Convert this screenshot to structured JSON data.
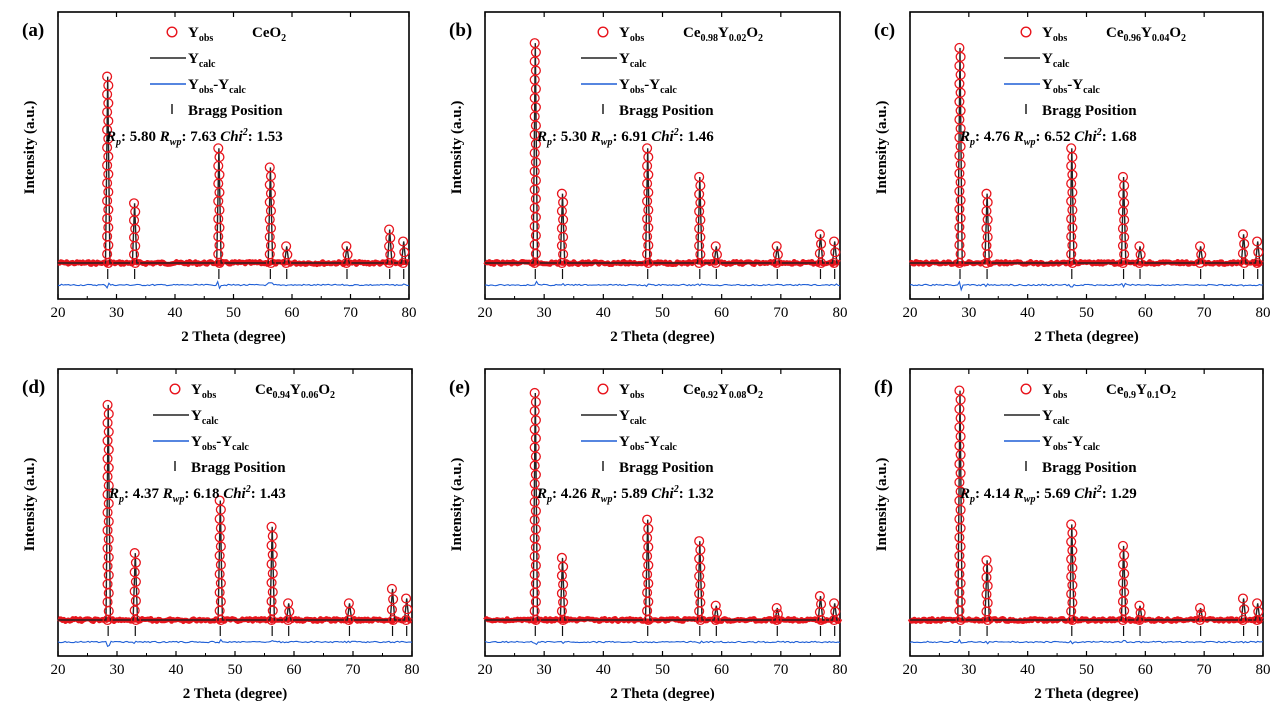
{
  "chart_data": [
    {
      "type": "line",
      "panel_label": "(a)",
      "composition": {
        "base": "CeO",
        "sub": "2"
      },
      "xlabel": "2 Theta (degree)",
      "ylabel": "Intensity (a.u.)",
      "xlim": [
        20,
        80
      ],
      "xticks": [
        "20",
        "30",
        "40",
        "50",
        "60",
        "70",
        "80"
      ],
      "legend": {
        "obs": "obs",
        "calc": "calc",
        "diff": "obs-calc",
        "bragg": "Bragg Position"
      },
      "stats": {
        "Rp": "5.80",
        "Rwp": "7.63",
        "Chi2": "1.53"
      },
      "peaks": [
        {
          "x": 28.5,
          "y": 0.78
        },
        {
          "x": 33.1,
          "y": 0.25
        },
        {
          "x": 47.5,
          "y": 0.48
        },
        {
          "x": 56.3,
          "y": 0.4
        },
        {
          "x": 59.1,
          "y": 0.07
        },
        {
          "x": 69.4,
          "y": 0.07
        },
        {
          "x": 76.7,
          "y": 0.14
        },
        {
          "x": 79.1,
          "y": 0.09
        }
      ]
    },
    {
      "type": "line",
      "panel_label": "(b)",
      "composition": {
        "base": "Ce",
        "sub": "0.98",
        "base2": "Y",
        "sub2": "0.02",
        "base3": "O",
        "sub3": "2"
      },
      "xlabel": "2 Theta (degree)",
      "ylabel": "Intensity (a.u.)",
      "xlim": [
        20,
        80
      ],
      "xticks": [
        "20",
        "30",
        "40",
        "50",
        "60",
        "70",
        "80"
      ],
      "legend": {
        "obs": "obs",
        "calc": "calc",
        "diff": "obs-calc",
        "bragg": "Bragg Position"
      },
      "stats": {
        "Rp": "5.30",
        "Rwp": "6.91",
        "Chi2": "1.46"
      },
      "peaks": [
        {
          "x": 28.5,
          "y": 0.92
        },
        {
          "x": 33.1,
          "y": 0.29
        },
        {
          "x": 47.5,
          "y": 0.48
        },
        {
          "x": 56.3,
          "y": 0.36
        },
        {
          "x": 59.1,
          "y": 0.07
        },
        {
          "x": 69.4,
          "y": 0.07
        },
        {
          "x": 76.7,
          "y": 0.12
        },
        {
          "x": 79.1,
          "y": 0.09
        }
      ]
    },
    {
      "type": "line",
      "panel_label": "(c)",
      "composition": {
        "base": "Ce",
        "sub": "0.96",
        "base2": "Y",
        "sub2": "0.04",
        "base3": "O",
        "sub3": "2"
      },
      "xlabel": "2 Theta (degree)",
      "ylabel": "Intensity (a.u.)",
      "xlim": [
        20,
        80
      ],
      "xticks": [
        "20",
        "30",
        "40",
        "50",
        "60",
        "70",
        "80"
      ],
      "legend": {
        "obs": "obs",
        "calc": "calc",
        "diff": "obs-calc",
        "bragg": "Bragg Position"
      },
      "stats": {
        "Rp": "4.76",
        "Rwp": "6.52",
        "Chi2": "1.68"
      },
      "peaks": [
        {
          "x": 28.5,
          "y": 0.9
        },
        {
          "x": 33.1,
          "y": 0.29
        },
        {
          "x": 47.5,
          "y": 0.48
        },
        {
          "x": 56.3,
          "y": 0.36
        },
        {
          "x": 59.1,
          "y": 0.07
        },
        {
          "x": 69.4,
          "y": 0.07
        },
        {
          "x": 76.7,
          "y": 0.12
        },
        {
          "x": 79.1,
          "y": 0.09
        }
      ]
    },
    {
      "type": "line",
      "panel_label": "(d)",
      "composition": {
        "base": "Ce",
        "sub": "0.94",
        "base2": "Y",
        "sub2": "0.06",
        "base3": "O",
        "sub3": "2"
      },
      "xlabel": "2 Theta (degree)",
      "ylabel": "Intensity (a.u.)",
      "xlim": [
        20,
        80
      ],
      "xticks": [
        "20",
        "30",
        "40",
        "50",
        "60",
        "70",
        "80"
      ],
      "legend": {
        "obs": "obs",
        "calc": "calc",
        "diff": "obs-calc",
        "bragg": "Bragg Position"
      },
      "stats": {
        "Rp": "4.37",
        "Rwp": "6.18",
        "Chi2": "1.43"
      },
      "peaks": [
        {
          "x": 28.5,
          "y": 0.9
        },
        {
          "x": 33.1,
          "y": 0.28
        },
        {
          "x": 47.5,
          "y": 0.5
        },
        {
          "x": 56.3,
          "y": 0.39
        },
        {
          "x": 59.1,
          "y": 0.07
        },
        {
          "x": 69.4,
          "y": 0.07
        },
        {
          "x": 76.7,
          "y": 0.13
        },
        {
          "x": 79.1,
          "y": 0.09
        }
      ]
    },
    {
      "type": "line",
      "panel_label": "(e)",
      "composition": {
        "base": "Ce",
        "sub": "0.92",
        "base2": "Y",
        "sub2": "0.08",
        "base3": "O",
        "sub3": "2"
      },
      "xlabel": "2 Theta (degree)",
      "ylabel": "Intensity (a.u.)",
      "xlim": [
        20,
        80
      ],
      "xticks": [
        "20",
        "30",
        "40",
        "50",
        "60",
        "70",
        "80"
      ],
      "legend": {
        "obs": "obs",
        "calc": "calc",
        "diff": "obs-calc",
        "bragg": "Bragg Position"
      },
      "stats": {
        "Rp": "4.26",
        "Rwp": "5.89",
        "Chi2": "1.32"
      },
      "peaks": [
        {
          "x": 28.5,
          "y": 0.95
        },
        {
          "x": 33.1,
          "y": 0.26
        },
        {
          "x": 47.5,
          "y": 0.42
        },
        {
          "x": 56.3,
          "y": 0.33
        },
        {
          "x": 59.1,
          "y": 0.06
        },
        {
          "x": 69.4,
          "y": 0.05
        },
        {
          "x": 76.7,
          "y": 0.1
        },
        {
          "x": 79.1,
          "y": 0.07
        }
      ]
    },
    {
      "type": "line",
      "panel_label": "(f)",
      "composition": {
        "base": "Ce",
        "sub": "0.9",
        "base2": "Y",
        "sub2": "0.1",
        "base3": "O",
        "sub3": "2"
      },
      "xlabel": "2 Theta (degree)",
      "ylabel": "Intensity (a.u.)",
      "xlim": [
        20,
        80
      ],
      "xticks": [
        "20",
        "30",
        "40",
        "50",
        "60",
        "70",
        "80"
      ],
      "legend": {
        "obs": "obs",
        "calc": "calc",
        "diff": "obs-calc",
        "bragg": "Bragg Position"
      },
      "stats": {
        "Rp": "4.14",
        "Rwp": "5.69",
        "Chi2": "1.29"
      },
      "peaks": [
        {
          "x": 28.5,
          "y": 0.96
        },
        {
          "x": 33.1,
          "y": 0.25
        },
        {
          "x": 47.5,
          "y": 0.4
        },
        {
          "x": 56.3,
          "y": 0.31
        },
        {
          "x": 59.1,
          "y": 0.06
        },
        {
          "x": 69.4,
          "y": 0.05
        },
        {
          "x": 76.7,
          "y": 0.09
        },
        {
          "x": 79.1,
          "y": 0.07
        }
      ]
    }
  ],
  "legend_symbols": {
    "Y": "Y",
    "R": "R",
    "R_p": "p",
    "R_wp": "wp",
    "Chi": "Chi",
    "Chi_sup": "2"
  },
  "colors": {
    "obs": "#e8141c",
    "calc": "#222222",
    "diff": "#1f5fd6",
    "bragg": "#111111"
  }
}
